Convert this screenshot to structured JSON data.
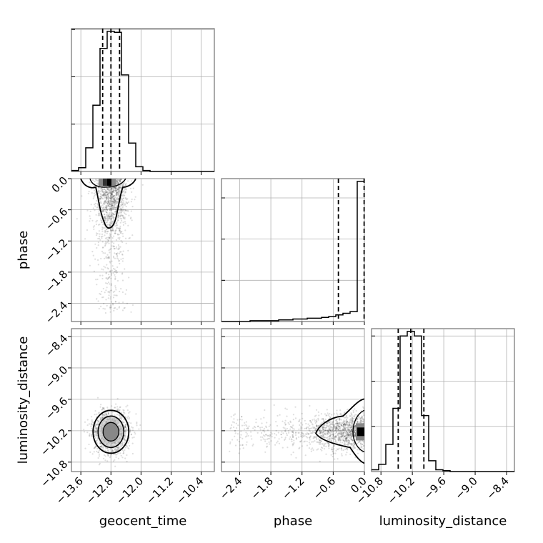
{
  "chart_data": {
    "type": "corner",
    "title": "",
    "grid": true,
    "parameters": [
      "geocent_time",
      "phase",
      "luminosity_distance"
    ],
    "axes_labels": {
      "x": [
        "geocent_time",
        "phase",
        "luminosity_distance"
      ],
      "y": [
        "phase",
        "luminosity_distance"
      ]
    },
    "ranges": {
      "geocent_time": [
        -13.85,
        -10.05
      ],
      "phase": [
        -2.75,
        0.0
      ],
      "luminosity_distance": [
        -10.98,
        -8.25
      ]
    },
    "ticks": {
      "geocent_time": [
        -13.6,
        -12.8,
        -12.0,
        -11.2,
        -10.4
      ],
      "geocent_time_labels": [
        "−13.6",
        "−12.8",
        "−12.0",
        "−11.2",
        "−10.4"
      ],
      "phase": [
        -2.4,
        -1.8,
        -1.2,
        -0.6,
        0.0
      ],
      "phase_labels": [
        "−2.4",
        "−1.8",
        "−1.2",
        "−0.6",
        "0.0"
      ],
      "luminosity_distance": [
        -10.8,
        -10.2,
        -9.6,
        -9.0,
        -8.4
      ],
      "luminosity_distance_labels": [
        "−10.8",
        "−10.2",
        "−9.6",
        "−9.0",
        "−8.4"
      ]
    },
    "histograms": [
      {
        "param": "geocent_time",
        "bin_edges": [
          -13.85,
          -13.66,
          -13.47,
          -13.28,
          -13.09,
          -12.9,
          -12.71,
          -12.52,
          -12.33,
          -12.14,
          -11.95,
          -11.76,
          -11.57,
          -11.38,
          -11.19,
          -11.0,
          -10.81,
          -10.62,
          -10.43,
          -10.24,
          -10.05
        ],
        "counts": [
          1,
          4,
          25,
          70,
          130,
          148,
          147,
          102,
          30,
          5,
          1,
          0,
          0,
          0,
          0,
          0,
          0,
          0,
          0,
          0
        ],
        "quantiles": [
          -13.02,
          -12.8,
          -12.57
        ]
      },
      {
        "param": "phase",
        "bin_edges": [
          -2.75,
          -2.6125,
          -2.475,
          -2.3375,
          -2.2,
          -2.0625,
          -1.925,
          -1.7875,
          -1.65,
          -1.5125,
          -1.375,
          -1.2375,
          -1.1,
          -0.9625,
          -0.825,
          -0.6875,
          -0.55,
          -0.4125,
          -0.275,
          -0.1375,
          0.0
        ],
        "counts": [
          0,
          0,
          0,
          0,
          1,
          1,
          1,
          1,
          2,
          2,
          3,
          3,
          4,
          4,
          5,
          6,
          8,
          10,
          12,
          170
        ],
        "quantiles": [
          -0.5,
          -0.005
        ]
      },
      {
        "param": "luminosity_distance",
        "bin_edges": [
          -10.98,
          -10.8435,
          -10.707,
          -10.5705,
          -10.434,
          -10.2975,
          -10.161,
          -10.0245,
          -9.888,
          -9.7515,
          -9.615,
          -9.4785,
          -9.342,
          -9.2055,
          -9.069,
          -8.9325,
          -8.796,
          -8.6595,
          -8.523,
          -8.3865,
          -8.25
        ],
        "counts": [
          2,
          8,
          30,
          70,
          150,
          155,
          150,
          62,
          12,
          2,
          1,
          0,
          0,
          0,
          0,
          0,
          0,
          0,
          0,
          0
        ],
        "quantiles": [
          -10.47,
          -10.23,
          -9.98
        ]
      }
    ],
    "density_peaks": [
      {
        "x_param": "geocent_time",
        "y_param": "phase",
        "x_center": -12.78,
        "y_center": -0.02,
        "x_sigma": 0.22,
        "y_sigma": 0.45
      },
      {
        "x_param": "geocent_time",
        "y_param": "luminosity_distance",
        "x_center": -12.8,
        "y_center": -10.22,
        "x_sigma": 0.24,
        "y_sigma": 0.22
      },
      {
        "x_param": "phase",
        "y_param": "luminosity_distance",
        "x_center": -0.05,
        "y_center": -10.22,
        "x_sigma": 0.5,
        "y_sigma": 0.18
      }
    ]
  }
}
